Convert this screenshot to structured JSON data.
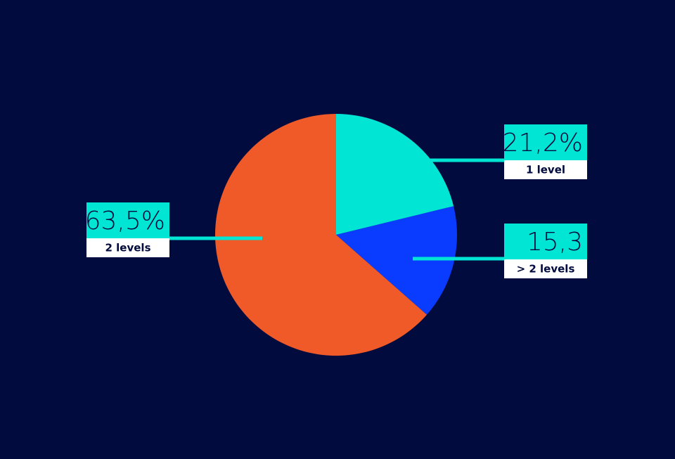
{
  "chart_data": {
    "type": "pie",
    "categories": [
      "1 level",
      "> 2 levels",
      "2 levels"
    ],
    "values": [
      21.2,
      15.3,
      63.5
    ],
    "value_labels": [
      "21,2%",
      "15,3",
      "63,5%"
    ],
    "colors": [
      "#00e5d4",
      "#0a3cff",
      "#f05a28"
    ]
  }
}
